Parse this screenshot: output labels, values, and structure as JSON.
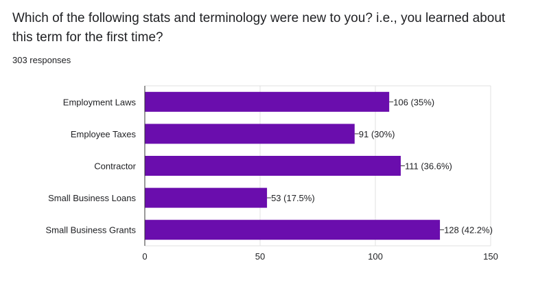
{
  "question": {
    "title": "Which of the following stats and terminology were new to you? i.e., you learned about this term for the first time?",
    "response_count": "303 responses"
  },
  "colors": {
    "bar": "#6a0dad",
    "grid": "#e0e0e0",
    "axis": "#333333",
    "text": "#202124"
  },
  "chart_data": {
    "type": "bar",
    "orientation": "horizontal",
    "categories": [
      "Employment Laws",
      "Employee Taxes",
      "Contractor",
      "Small Business Loans",
      "Small Business Grants"
    ],
    "values": [
      106,
      91,
      111,
      53,
      128
    ],
    "data_labels": [
      "106 (35%)",
      "91 (30%)",
      "111 (36.6%)",
      "53 (17.5%)",
      "128 (42.2%)"
    ],
    "xlim": [
      0,
      150
    ],
    "xticks": [
      0,
      50,
      100,
      150
    ],
    "xtick_labels": [
      "0",
      "50",
      "100",
      "150"
    ],
    "grid": true,
    "legend": "none"
  }
}
